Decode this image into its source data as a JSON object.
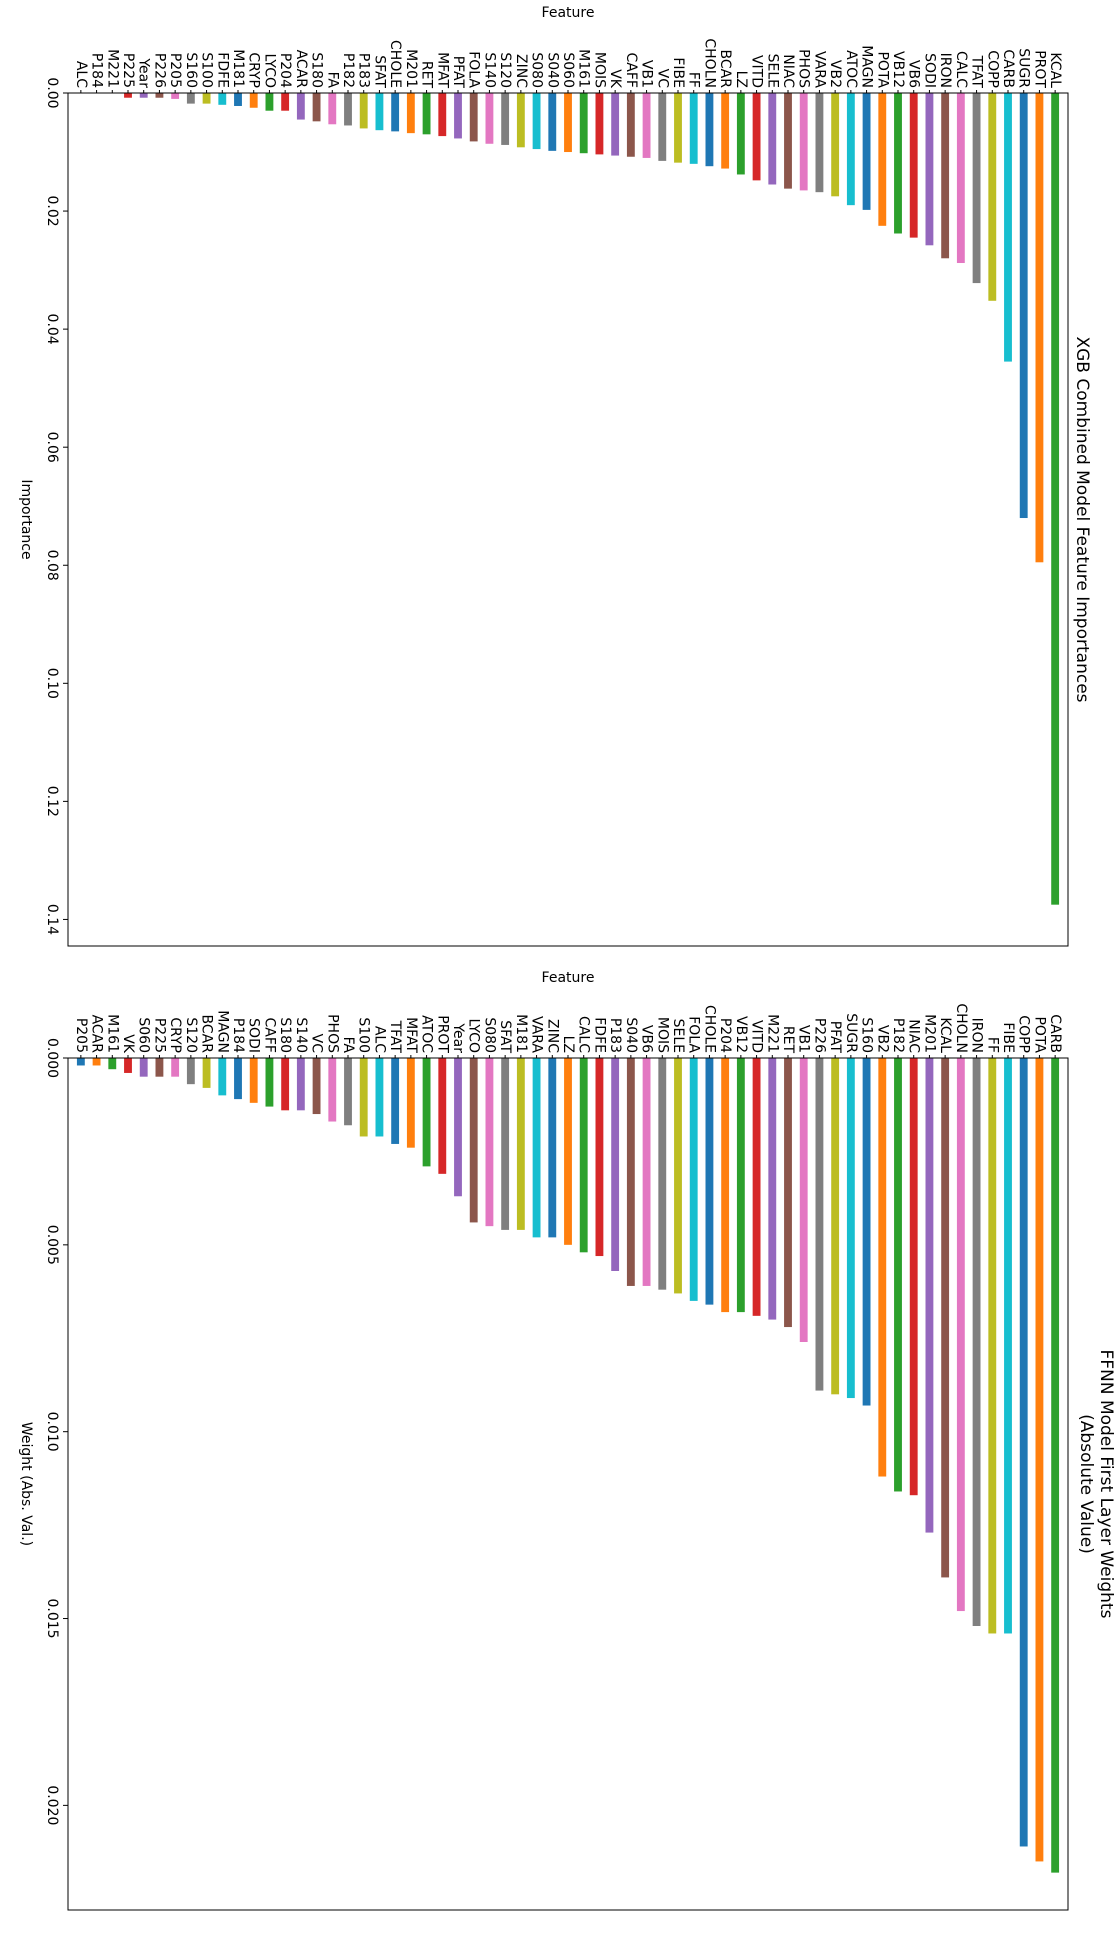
{
  "chart_data": [
    {
      "type": "bar",
      "title": "XGB Combined Model Feature Importances",
      "x_label": "Feature",
      "y_label": "Importance",
      "categories": [
        "ALC",
        "P184",
        "M221",
        "P225",
        "Year",
        "P226",
        "P205",
        "S160",
        "S100",
        "FDFE",
        "M181",
        "CRYP",
        "LYCO",
        "P204",
        "ACAR",
        "S180",
        "FA",
        "P182",
        "P183",
        "SFAT",
        "CHOLE",
        "M201",
        "RET",
        "MFAT",
        "PFAT",
        "FOLA",
        "S140",
        "S120",
        "ZINC",
        "S080",
        "S040",
        "S060",
        "M161",
        "MOIS",
        "VK",
        "CAFF",
        "VB1",
        "VC",
        "FIBE",
        "FF",
        "CHOLN",
        "BCAR",
        "LZ",
        "VITD",
        "SELE",
        "NIAC",
        "PHOS",
        "VARA",
        "VB2",
        "ATOC",
        "MAGN",
        "POTA",
        "VB12",
        "VB6",
        "SODI",
        "IRON",
        "CALC",
        "TFAT",
        "COPP",
        "CARB",
        "SUGR",
        "PROT",
        "KCAL"
      ],
      "values": [
        0,
        0,
        0,
        0.0008,
        0.0008,
        0.0008,
        0.001,
        0.0018,
        0.0018,
        0.002,
        0.0022,
        0.0025,
        0.003,
        0.003,
        0.0045,
        0.0048,
        0.0053,
        0.0055,
        0.006,
        0.0063,
        0.0065,
        0.0068,
        0.007,
        0.0073,
        0.0077,
        0.0082,
        0.0086,
        0.0088,
        0.0092,
        0.0095,
        0.0098,
        0.01,
        0.0102,
        0.0104,
        0.0106,
        0.0108,
        0.011,
        0.0115,
        0.0118,
        0.012,
        0.0124,
        0.0128,
        0.0138,
        0.0148,
        0.0155,
        0.0162,
        0.0165,
        0.0168,
        0.0175,
        0.019,
        0.0198,
        0.0225,
        0.0238,
        0.0245,
        0.0258,
        0.028,
        0.0288,
        0.0322,
        0.0352,
        0.0455,
        0.072,
        0.0795,
        0.1375
      ],
      "color_cycle": [
        "#1f77b4",
        "#ff7f0e",
        "#2ca02c",
        "#d62728",
        "#9467bd",
        "#8c564b",
        "#e377c2",
        "#7f7f7f",
        "#bcbd22",
        "#17becf"
      ],
      "ylim": [
        0,
        0.1445
      ],
      "yticks": [
        {
          "value": 0,
          "label": "0.00"
        },
        0.02,
        0.04,
        0.06,
        0.08,
        {
          "value": 0.1,
          "label": "0.10"
        },
        0.12,
        0.14
      ]
    },
    {
      "type": "bar",
      "title": "FFNN Model First Layer Weights",
      "subtitle": "(Absolute Value)",
      "x_label": "Feature",
      "y_label": "Weight (Abs. Val.)",
      "categories": [
        "P205",
        "ACAR",
        "M161",
        "VK",
        "S060",
        "P225",
        "CRYP",
        "S120",
        "BCAR",
        "MAGN",
        "P184",
        "SODI",
        "CAFF",
        "S180",
        "S140",
        "VC",
        "PHOS",
        "FA",
        "S100",
        "ALC",
        "TFAT",
        "MFAT",
        "ATOC",
        "PROT",
        "Year",
        "LYCO",
        "S080",
        "SFAT",
        "M181",
        "VARA",
        "ZINC",
        "LZ",
        "CALC",
        "FDFE",
        "P183",
        "S040",
        "VB6",
        "MOIS",
        "SELE",
        "FOLA",
        "CHOLE",
        "P204",
        "VB12",
        "VITD",
        "M221",
        "RET",
        "VB1",
        "P226",
        "PFAT",
        "SUGR",
        "S160",
        "VB2",
        "P182",
        "NIAC",
        "M201",
        "KCAL",
        "CHOLN",
        "IRON",
        "FF",
        "FIBE",
        "COPP",
        "POTA",
        "CARB"
      ],
      "values": [
        0.0002,
        0.0002,
        0.0003,
        0.0004,
        0.0005,
        0.0005,
        0.0005,
        0.0007,
        0.0008,
        0.001,
        0.0011,
        0.0012,
        0.0013,
        0.0014,
        0.0014,
        0.0015,
        0.0017,
        0.0018,
        0.0021,
        0.0021,
        0.0023,
        0.0024,
        0.0029,
        0.0031,
        0.0037,
        0.0044,
        0.0045,
        0.0046,
        0.0046,
        0.0048,
        0.0048,
        0.005,
        0.0052,
        0.0053,
        0.0057,
        0.0061,
        0.0061,
        0.0062,
        0.0063,
        0.0065,
        0.0066,
        0.0068,
        0.0068,
        0.0069,
        0.007,
        0.0072,
        0.0076,
        0.0089,
        0.009,
        0.0091,
        0.0093,
        0.0112,
        0.0116,
        0.0117,
        0.0127,
        0.0139,
        0.0148,
        0.0152,
        0.0154,
        0.0154,
        0.0211,
        0.0215,
        0.0218
      ],
      "color_cycle": [
        "#1f77b4",
        "#ff7f0e",
        "#2ca02c",
        "#d62728",
        "#9467bd",
        "#8c564b",
        "#e377c2",
        "#7f7f7f",
        "#bcbd22",
        "#17becf"
      ],
      "ylim": [
        0,
        0.0228
      ],
      "yticks": [
        {
          "value": 0,
          "label": "0.000"
        },
        0.005,
        {
          "value": 0.01,
          "label": "0.010"
        },
        0.015,
        {
          "value": 0.02,
          "label": "0.020"
        }
      ]
    }
  ]
}
